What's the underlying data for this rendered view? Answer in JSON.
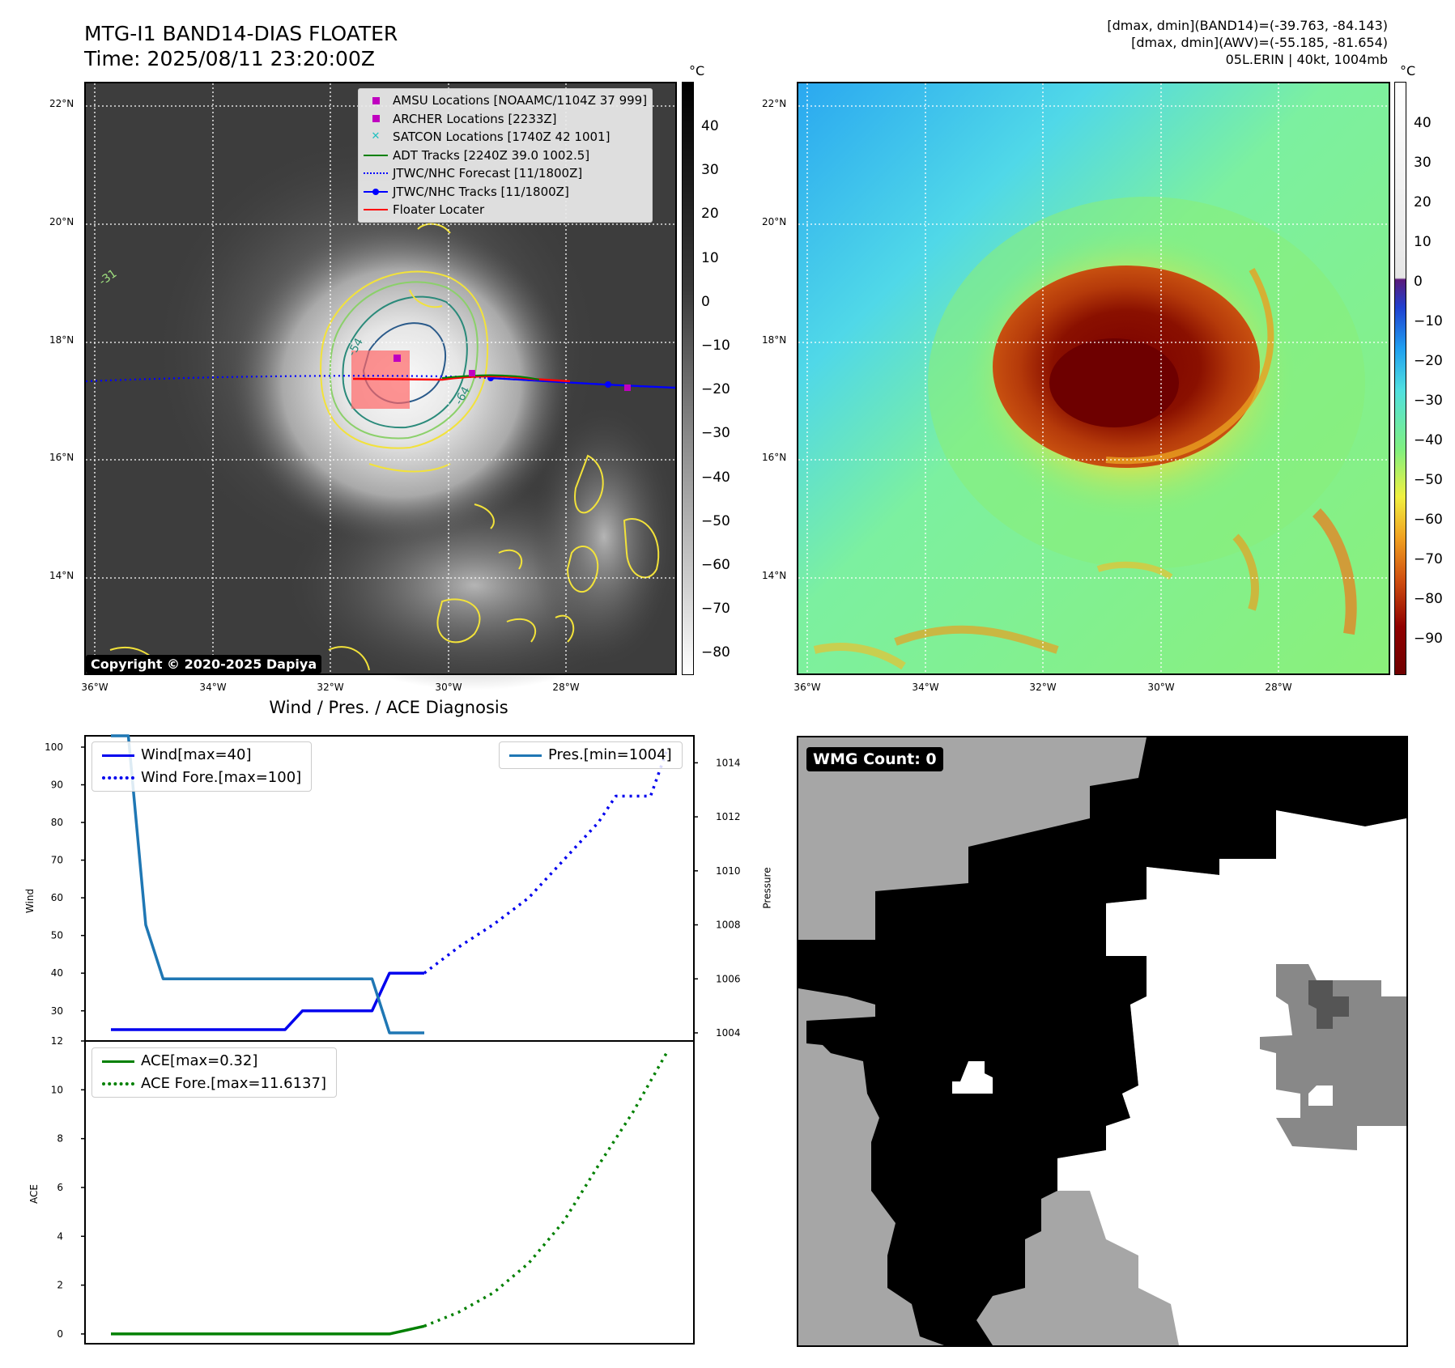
{
  "header": {
    "title_line1": "MTG-I1 BAND14-DIAS FLOATER",
    "title_line2": "Time: 2025/08/11 23:20:00Z",
    "info_line1": "[dmax, dmin](BAND14)=(-39.763, -84.143)",
    "info_line2": "[dmax, dmin](AWV)=(-55.185, -81.654)",
    "info_line3": "05L.ERIN | 40kt, 1004mb"
  },
  "map": {
    "lat_labels": [
      "22°N",
      "20°N",
      "18°N",
      "16°N",
      "14°N"
    ],
    "lon_labels": [
      "36°W",
      "34°W",
      "32°W",
      "30°W",
      "28°W"
    ],
    "copyright": "Copyright © 2020-2025 Dapiya",
    "contour_labels": [
      "-31",
      "-54",
      "-64"
    ],
    "legend": [
      {
        "label": "AMSU Locations [NOAAMC/1104Z 37 999]",
        "symbol": "square",
        "color": "#c000c0"
      },
      {
        "label": "ARCHER Locations [2233Z]",
        "symbol": "square",
        "color": "#c000c0"
      },
      {
        "label": "SATCON Locations [1740Z 42 1001]",
        "symbol": "x",
        "color": "#20c0c0"
      },
      {
        "label": "ADT Tracks [2240Z 39.0 1002.5]",
        "symbol": "line",
        "color": "#008000"
      },
      {
        "label": "JTWC/NHC Forecast [11/1800Z]",
        "symbol": "dotted",
        "color": "#0000ff"
      },
      {
        "label": "JTWC/NHC Tracks [11/1800Z]",
        "symbol": "line-dot",
        "color": "#0000ff"
      },
      {
        "label": "Floater Locater",
        "symbol": "line",
        "color": "#ff0000"
      }
    ]
  },
  "colorbar_gray": {
    "unit": "°C",
    "ticks": [
      "40",
      "30",
      "20",
      "10",
      "0",
      "−10",
      "−20",
      "−30",
      "−40",
      "−50",
      "−60",
      "−70",
      "−80"
    ]
  },
  "colorbar_color": {
    "unit": "°C",
    "ticks": [
      "40",
      "30",
      "20",
      "10",
      "0",
      "−10",
      "−20",
      "−30",
      "−40",
      "−50",
      "−60",
      "−70",
      "−80",
      "−90"
    ]
  },
  "wmg": {
    "badge": "WMG Count: 0"
  },
  "chart_data": [
    {
      "type": "line",
      "title": "Wind / Pres. / ACE Diagnosis",
      "ylabel": "Wind",
      "ylabel_right": "Pressure",
      "ylim": [
        22,
        103
      ],
      "ylim_right": [
        1003.7,
        1015.0
      ],
      "yticks": [
        100,
        90,
        80,
        70,
        60,
        50,
        40,
        30
      ],
      "yticks_right": [
        1014,
        1012,
        1010,
        1008,
        1006,
        1004
      ],
      "x": [
        0,
        1,
        2,
        3,
        4,
        5,
        6,
        7,
        8,
        9,
        10,
        11,
        12,
        13,
        14,
        15,
        16,
        17,
        18,
        19,
        20,
        21,
        22,
        23,
        24,
        25,
        26,
        27,
        28,
        29,
        30,
        31,
        32
      ],
      "series": [
        {
          "name": "Wind[max=40]",
          "style": "solid",
          "color": "#0000ee",
          "x": [
            0,
            2,
            4,
            6,
            8,
            10,
            11,
            12,
            14,
            15,
            16,
            17,
            18
          ],
          "values": [
            25,
            25,
            25,
            25,
            25,
            25,
            30,
            30,
            30,
            30,
            40,
            40,
            40
          ]
        },
        {
          "name": "Wind Fore.[max=100]",
          "style": "dotted",
          "color": "#0000ee",
          "x": [
            18,
            20,
            22,
            24,
            26,
            28,
            29,
            30,
            31,
            32
          ],
          "values": [
            40,
            47,
            53,
            60,
            70,
            80,
            87,
            87,
            87,
            100
          ]
        },
        {
          "name": "Pres.[min=1004]",
          "style": "solid",
          "color": "#1f77b4",
          "axis": "right",
          "x": [
            0,
            1,
            2,
            3,
            4,
            5,
            6,
            7,
            8,
            9,
            10,
            11,
            12,
            13,
            14,
            15,
            16,
            17,
            18
          ],
          "values": [
            1015,
            1015,
            1008,
            1006,
            1006,
            1006,
            1006,
            1006,
            1006,
            1006,
            1006,
            1006,
            1006,
            1006,
            1006,
            1006,
            1004,
            1004,
            1004
          ]
        }
      ]
    },
    {
      "type": "line",
      "ylabel": "ACE",
      "ylim": [
        -0.4,
        12.0
      ],
      "yticks": [
        12,
        10,
        8,
        6,
        4,
        2,
        0
      ],
      "series": [
        {
          "name": "ACE[max=0.32]",
          "style": "solid",
          "color": "#008000",
          "x": [
            0,
            4,
            8,
            12,
            16,
            18
          ],
          "values": [
            0,
            0,
            0,
            0,
            0,
            0.32
          ]
        },
        {
          "name": "ACE Fore.[max=11.6137]",
          "style": "dotted",
          "color": "#008000",
          "x": [
            18,
            20,
            22,
            24,
            26,
            28,
            30,
            32
          ],
          "values": [
            0.32,
            0.9,
            1.7,
            2.9,
            4.6,
            6.9,
            9.1,
            11.6137
          ]
        }
      ]
    }
  ]
}
